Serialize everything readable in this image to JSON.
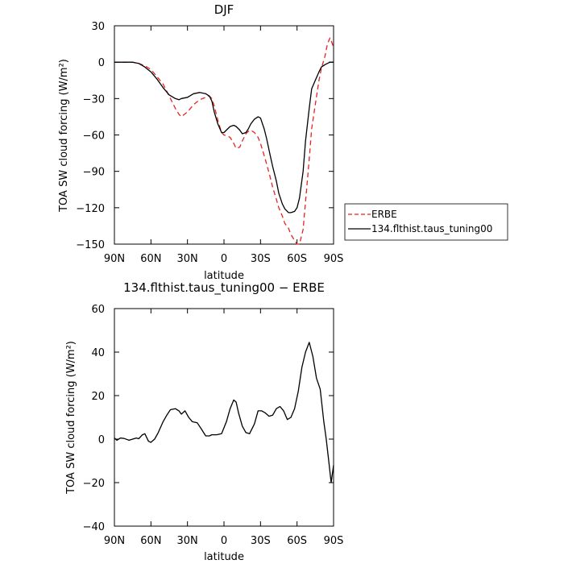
{
  "chart_data": [
    {
      "type": "line",
      "title": "DJF",
      "xlabel": "latitude",
      "ylabel": "TOA SW cloud forcing (W/m²)",
      "xlim": [
        -90,
        90
      ],
      "ylim": [
        -150,
        30
      ],
      "x_ticks": [
        -90,
        -60,
        -30,
        0,
        30,
        60,
        90
      ],
      "x_tick_labels": [
        "90N",
        "60N",
        "30N",
        "0",
        "30S",
        "60S",
        "90S"
      ],
      "y_ticks": [
        -150,
        -120,
        -90,
        -60,
        -30,
        0,
        30
      ],
      "y_tick_labels": [
        "−150",
        "−120",
        "−90",
        "−60",
        "−30",
        "0",
        "30"
      ],
      "grid": false,
      "legend_position": "right",
      "series": [
        {
          "name": "ERBE",
          "color": "#e8231f",
          "dash": "dashed",
          "x": [
            -90,
            -85,
            -80,
            -75,
            -70,
            -65,
            -60,
            -55,
            -50,
            -45,
            -40,
            -37,
            -35,
            -30,
            -25,
            -20,
            -15,
            -12,
            -10,
            -8,
            -5,
            -2,
            0,
            3,
            5,
            8,
            10,
            13,
            15,
            18,
            20,
            22,
            25,
            28,
            30,
            33,
            35,
            38,
            40,
            43,
            45,
            48,
            50,
            53,
            55,
            58,
            60,
            62,
            65,
            67,
            70,
            72,
            75,
            78,
            80,
            83,
            85,
            87,
            88,
            90
          ],
          "values": [
            0,
            0,
            0,
            0,
            -1,
            -3,
            -6,
            -12,
            -18,
            -28,
            -38,
            -43,
            -45,
            -41,
            -35,
            -31,
            -29,
            -28,
            -30,
            -36,
            -48,
            -58,
            -60,
            -61,
            -62,
            -67,
            -71,
            -70,
            -65,
            -59,
            -57,
            -56,
            -58,
            -62,
            -67,
            -77,
            -84,
            -95,
            -103,
            -113,
            -120,
            -127,
            -133,
            -137,
            -142,
            -147,
            -150,
            -150,
            -138,
            -115,
            -80,
            -55,
            -35,
            -15,
            -5,
            5,
            15,
            20,
            18,
            12
          ]
        },
        {
          "name": "134.flthist.taus_tuning00",
          "color": "#000000",
          "dash": "solid",
          "x": [
            -90,
            -85,
            -80,
            -75,
            -70,
            -65,
            -60,
            -55,
            -50,
            -45,
            -40,
            -37,
            -35,
            -30,
            -25,
            -20,
            -15,
            -12,
            -10,
            -8,
            -5,
            -2,
            0,
            3,
            5,
            8,
            10,
            13,
            15,
            18,
            20,
            22,
            25,
            28,
            30,
            33,
            35,
            38,
            40,
            43,
            45,
            48,
            50,
            53,
            55,
            58,
            60,
            62,
            65,
            67,
            70,
            72,
            75,
            78,
            80,
            83,
            85,
            87,
            88,
            90
          ],
          "values": [
            0,
            0,
            0,
            0,
            -1,
            -4,
            -8,
            -14,
            -21,
            -27,
            -30,
            -31,
            -30,
            -29,
            -26,
            -25,
            -26,
            -28,
            -32,
            -41,
            -51,
            -58,
            -58,
            -55,
            -53,
            -52,
            -53,
            -56,
            -59,
            -58,
            -55,
            -51,
            -47,
            -45,
            -46,
            -55,
            -63,
            -77,
            -86,
            -98,
            -108,
            -117,
            -121,
            -124,
            -124,
            -123,
            -120,
            -112,
            -90,
            -65,
            -38,
            -22,
            -15,
            -8,
            -4,
            -2,
            -1,
            0,
            0,
            0
          ]
        }
      ]
    },
    {
      "type": "line",
      "title": "134.flthist.taus_tuning00 − ERBE",
      "xlabel": "latitude",
      "ylabel": "TOA SW cloud forcing (W/m²)",
      "xlim": [
        -90,
        90
      ],
      "ylim": [
        -40,
        60
      ],
      "x_ticks": [
        -90,
        -60,
        -30,
        0,
        30,
        60,
        90
      ],
      "x_tick_labels": [
        "90N",
        "60N",
        "30N",
        "0",
        "30S",
        "60S",
        "90S"
      ],
      "y_ticks": [
        -40,
        -20,
        0,
        20,
        40,
        60
      ],
      "y_tick_labels": [
        "−40",
        "−20",
        "0",
        "20",
        "40",
        "60"
      ],
      "grid": false,
      "series": [
        {
          "color": "#000000",
          "dash": "solid",
          "x": [
            -90,
            -88,
            -85,
            -82,
            -78,
            -75,
            -72,
            -70,
            -67,
            -65,
            -62,
            -60,
            -57,
            -54,
            -50,
            -47,
            -44,
            -40,
            -37,
            -35,
            -32,
            -29,
            -26,
            -22,
            -19,
            -15,
            -12,
            -10,
            -6,
            -2,
            2,
            5,
            8,
            10,
            12,
            15,
            18,
            21,
            25,
            28,
            31,
            34,
            37,
            40,
            43,
            46,
            49,
            52,
            55,
            58,
            61,
            64,
            67,
            70,
            73,
            76,
            79,
            82,
            84,
            86,
            88,
            90
          ],
          "values": [
            0.5,
            -0.5,
            0.5,
            0.3,
            -0.5,
            0,
            0.5,
            0.2,
            2,
            2.5,
            -1,
            -1.5,
            0,
            3,
            8,
            11,
            13.5,
            14,
            13,
            11.5,
            13,
            10,
            8,
            7.5,
            5,
            1.5,
            1.5,
            2,
            2,
            2.5,
            8,
            14,
            18,
            17,
            12,
            6,
            3,
            2.5,
            7,
            13,
            13,
            12,
            10.5,
            11,
            14,
            15,
            13,
            9,
            10,
            14,
            22,
            33,
            40,
            44.5,
            38,
            28,
            23,
            8,
            0,
            -10,
            -20,
            -12
          ]
        }
      ]
    }
  ]
}
